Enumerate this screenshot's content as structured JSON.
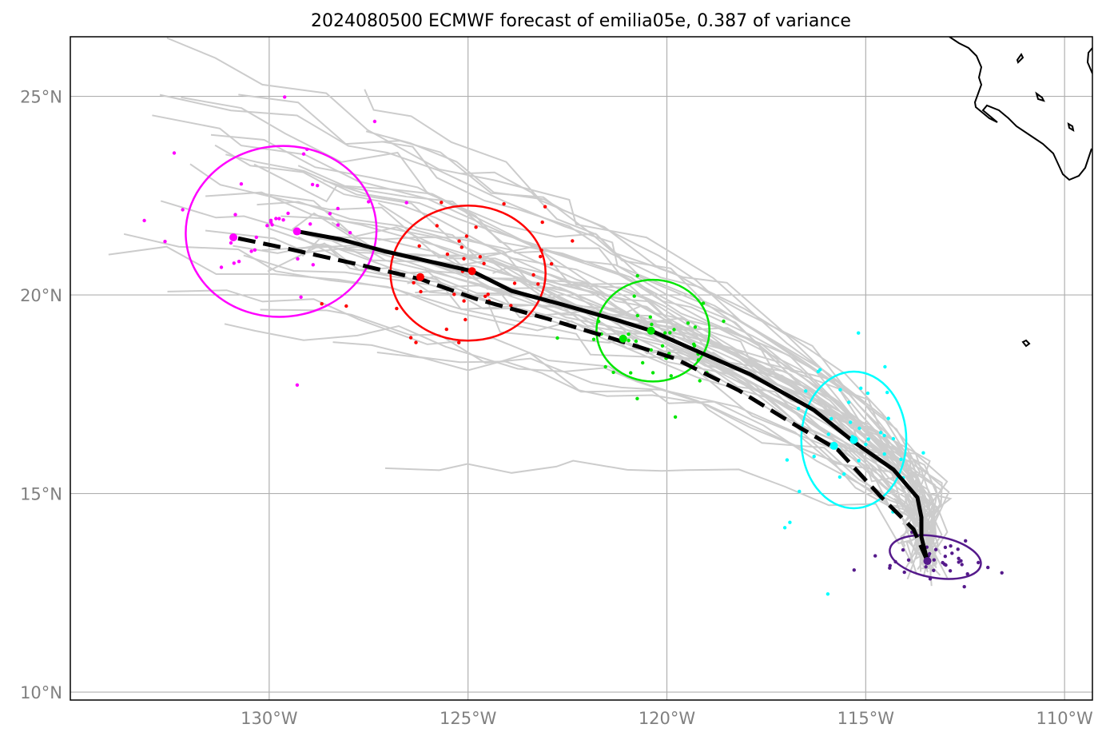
{
  "title": "2024080500 ECMWF forecast of emilia05e, 0.387 of variance",
  "colors": {
    "ensemble_member": "#cccccc",
    "ensemble_mean": "#000000",
    "grid": "#b0b0b0",
    "tick_label": "#808080",
    "coastline": "#000000",
    "clusters": [
      "#ff00ff",
      "#ff0000",
      "#00e600",
      "#00ffff",
      "#551a8b"
    ]
  },
  "chart_data": {
    "type": "map",
    "projection": "PlateCarree",
    "extent": {
      "lon": [
        -135,
        -109.3
      ],
      "lat": [
        9.8,
        26.5
      ]
    },
    "xticks": [
      {
        "value": -130,
        "label": "130°W"
      },
      {
        "value": -125,
        "label": "125°W"
      },
      {
        "value": -120,
        "label": "120°W"
      },
      {
        "value": -115,
        "label": "115°W"
      },
      {
        "value": -110,
        "label": "110°W"
      }
    ],
    "yticks": [
      {
        "value": 10,
        "label": "10°N"
      },
      {
        "value": 15,
        "label": "15°N"
      },
      {
        "value": 20,
        "label": "20°N"
      },
      {
        "value": 25,
        "label": "25°N"
      }
    ],
    "grid": true,
    "mean_track_solid": [
      [
        -113.45,
        13.3
      ],
      [
        -113.6,
        13.9
      ],
      [
        -113.6,
        14.4
      ],
      [
        -113.7,
        14.9
      ],
      [
        -114.3,
        15.6
      ],
      [
        -115.3,
        16.3
      ],
      [
        -116.3,
        17.1
      ],
      [
        -117.9,
        18.0
      ],
      [
        -119.5,
        18.7
      ],
      [
        -120.4,
        19.1
      ],
      [
        -121.2,
        19.35
      ],
      [
        -122.6,
        19.75
      ],
      [
        -123.9,
        20.1
      ],
      [
        -124.9,
        20.6
      ],
      [
        -126.0,
        20.85
      ],
      [
        -127.1,
        21.1
      ],
      [
        -128.2,
        21.4
      ],
      [
        -129.3,
        21.6
      ]
    ],
    "mean_track_dashed": [
      [
        -113.45,
        13.3
      ],
      [
        -113.8,
        14.1
      ],
      [
        -114.6,
        14.9
      ],
      [
        -115.7,
        16.1
      ],
      [
        -116.9,
        16.8
      ],
      [
        -118.2,
        17.6
      ],
      [
        -119.8,
        18.4
      ],
      [
        -121.2,
        18.85
      ],
      [
        -123.0,
        19.4
      ],
      [
        -124.8,
        19.9
      ],
      [
        -126.2,
        20.4
      ],
      [
        -127.9,
        20.8
      ],
      [
        -129.7,
        21.2
      ],
      [
        -130.9,
        21.45
      ]
    ],
    "ellipses": [
      {
        "lon": -129.7,
        "lat": 21.6,
        "rlon": 2.4,
        "rlat": 2.15,
        "angle": -5,
        "color": "#ff00ff"
      },
      {
        "lon": -125.0,
        "lat": 20.55,
        "rlon": 1.95,
        "rlat": 1.7,
        "angle": 0,
        "color": "#ff0000"
      },
      {
        "lon": -120.35,
        "lat": 19.1,
        "rlon": 1.42,
        "rlat": 1.28,
        "angle": 0,
        "color": "#00e600"
      },
      {
        "lon": -115.3,
        "lat": 16.35,
        "rlon": 1.32,
        "rlat": 1.72,
        "angle": 0,
        "color": "#00ffff"
      },
      {
        "lon": -113.25,
        "lat": 13.4,
        "rlon": 1.16,
        "rlat": 0.52,
        "angle": 10,
        "color": "#551a8b"
      }
    ],
    "cluster_centers": [
      {
        "lon": -129.3,
        "lat": 21.6,
        "color": "#ff00ff"
      },
      {
        "lon": -130.9,
        "lat": 21.45,
        "color": "#ff00ff"
      },
      {
        "lon": -124.9,
        "lat": 20.6,
        "color": "#ff0000"
      },
      {
        "lon": -126.2,
        "lat": 20.45,
        "color": "#ff0000"
      },
      {
        "lon": -120.4,
        "lat": 19.1,
        "color": "#00e600"
      },
      {
        "lon": -121.1,
        "lat": 18.9,
        "color": "#00e600"
      },
      {
        "lon": -115.3,
        "lat": 16.35,
        "color": "#00ffff"
      },
      {
        "lon": -115.8,
        "lat": 16.2,
        "color": "#00ffff"
      },
      {
        "lon": -113.45,
        "lat": 13.3,
        "color": "#551a8b"
      }
    ]
  }
}
